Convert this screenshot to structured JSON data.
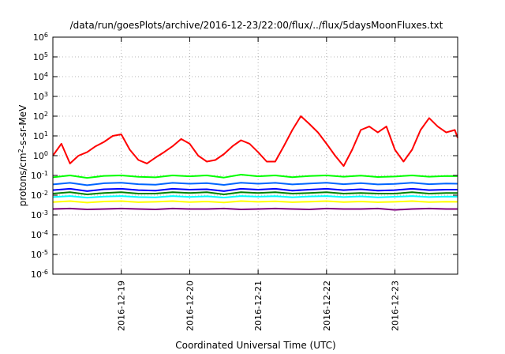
{
  "chart_data": {
    "type": "line",
    "title": "/data/run/goesPlots/archive/2016-12-23/22:00/flux/../flux/5daysMoonFluxes.txt",
    "xlabel": "Coordinated Universal Time (UTC)",
    "ylabel": {
      "pre": "protons/cm",
      "sup": "2",
      "post": "-s-sr-MeV"
    },
    "y_scale": "log",
    "ylim": [
      1e-06,
      1000000.0
    ],
    "y_ticks": [
      {
        "value": 1e-06,
        "base": "10",
        "exp": "-6"
      },
      {
        "value": 1e-05,
        "base": "10",
        "exp": "-5"
      },
      {
        "value": 0.0001,
        "base": "10",
        "exp": "-4"
      },
      {
        "value": 0.001,
        "base": "10",
        "exp": "-3"
      },
      {
        "value": 0.01,
        "base": "10",
        "exp": "-2"
      },
      {
        "value": 0.1,
        "base": "10",
        "exp": "-1"
      },
      {
        "value": 1,
        "base": "10",
        "exp": "0"
      },
      {
        "value": 10,
        "base": "10",
        "exp": "1"
      },
      {
        "value": 100,
        "base": "10",
        "exp": "2"
      },
      {
        "value": 1000,
        "base": "10",
        "exp": "3"
      },
      {
        "value": 10000,
        "base": "10",
        "exp": "4"
      },
      {
        "value": 100000,
        "base": "10",
        "exp": "5"
      },
      {
        "value": 1000000,
        "base": "10",
        "exp": "6"
      }
    ],
    "xlim": [
      "2016-12-18 00:00",
      "2016-12-23 22:00"
    ],
    "x_ticks": [
      {
        "value": "2016-12-19 00:00",
        "label": "2016-12-19"
      },
      {
        "value": "2016-12-20 00:00",
        "label": "2016-12-20"
      },
      {
        "value": "2016-12-21 00:00",
        "label": "2016-12-21"
      },
      {
        "value": "2016-12-22 00:00",
        "label": "2016-12-22"
      },
      {
        "value": "2016-12-23 00:00",
        "label": "2016-12-23"
      }
    ],
    "grid": true,
    "series": [
      {
        "color": "#800080",
        "x": [
          "2016-12-18 00:00",
          "2016-12-18 06:00",
          "2016-12-18 12:00",
          "2016-12-18 18:00",
          "2016-12-19 00:00",
          "2016-12-19 06:00",
          "2016-12-19 12:00",
          "2016-12-19 18:00",
          "2016-12-20 00:00",
          "2016-12-20 06:00",
          "2016-12-20 12:00",
          "2016-12-20 18:00",
          "2016-12-21 00:00",
          "2016-12-21 06:00",
          "2016-12-21 12:00",
          "2016-12-21 18:00",
          "2016-12-22 00:00",
          "2016-12-22 06:00",
          "2016-12-22 12:00",
          "2016-12-22 18:00",
          "2016-12-23 00:00",
          "2016-12-23 06:00",
          "2016-12-23 12:00",
          "2016-12-23 18:00",
          "2016-12-23 22:00"
        ],
        "values": [
          0.002,
          0.0021,
          0.0019,
          0.002,
          0.0021,
          0.002,
          0.0019,
          0.0021,
          0.002,
          0.002,
          0.0021,
          0.0019,
          0.002,
          0.0021,
          0.002,
          0.0019,
          0.0021,
          0.002,
          0.002,
          0.0021,
          0.0018,
          0.002,
          0.0021,
          0.002,
          0.002
        ]
      },
      {
        "color": "#ffff00",
        "x": [
          "2016-12-18 00:00",
          "2016-12-18 06:00",
          "2016-12-18 12:00",
          "2016-12-18 18:00",
          "2016-12-19 00:00",
          "2016-12-19 06:00",
          "2016-12-19 12:00",
          "2016-12-19 18:00",
          "2016-12-20 00:00",
          "2016-12-20 06:00",
          "2016-12-20 12:00",
          "2016-12-20 18:00",
          "2016-12-21 00:00",
          "2016-12-21 06:00",
          "2016-12-21 12:00",
          "2016-12-21 18:00",
          "2016-12-22 00:00",
          "2016-12-22 06:00",
          "2016-12-22 12:00",
          "2016-12-22 18:00",
          "2016-12-23 00:00",
          "2016-12-23 06:00",
          "2016-12-23 12:00",
          "2016-12-23 18:00",
          "2016-12-23 22:00"
        ],
        "values": [
          0.0045,
          0.005,
          0.0042,
          0.0048,
          0.005,
          0.0044,
          0.0046,
          0.005,
          0.0045,
          0.0048,
          0.0043,
          0.005,
          0.0046,
          0.0049,
          0.0044,
          0.0047,
          0.005,
          0.0045,
          0.0048,
          0.0044,
          0.0046,
          0.005,
          0.0045,
          0.0047,
          0.0046
        ]
      },
      {
        "color": "#00ffff",
        "x": [
          "2016-12-18 00:00",
          "2016-12-18 06:00",
          "2016-12-18 12:00",
          "2016-12-18 18:00",
          "2016-12-19 00:00",
          "2016-12-19 06:00",
          "2016-12-19 12:00",
          "2016-12-19 18:00",
          "2016-12-20 00:00",
          "2016-12-20 06:00",
          "2016-12-20 12:00",
          "2016-12-20 18:00",
          "2016-12-21 00:00",
          "2016-12-21 06:00",
          "2016-12-21 12:00",
          "2016-12-21 18:00",
          "2016-12-22 00:00",
          "2016-12-22 06:00",
          "2016-12-22 12:00",
          "2016-12-22 18:00",
          "2016-12-23 00:00",
          "2016-12-23 06:00",
          "2016-12-23 12:00",
          "2016-12-23 18:00",
          "2016-12-23 22:00"
        ],
        "values": [
          0.008,
          0.009,
          0.0075,
          0.0085,
          0.009,
          0.008,
          0.0078,
          0.009,
          0.0082,
          0.0088,
          0.0076,
          0.009,
          0.0084,
          0.0089,
          0.0079,
          0.0086,
          0.009,
          0.008,
          0.0087,
          0.0078,
          0.0083,
          0.009,
          0.008,
          0.0085,
          0.0084
        ]
      },
      {
        "color": "#008000",
        "x": [
          "2016-12-18 00:00",
          "2016-12-18 06:00",
          "2016-12-18 12:00",
          "2016-12-18 18:00",
          "2016-12-19 00:00",
          "2016-12-19 06:00",
          "2016-12-19 12:00",
          "2016-12-19 18:00",
          "2016-12-20 00:00",
          "2016-12-20 06:00",
          "2016-12-20 12:00",
          "2016-12-20 18:00",
          "2016-12-21 00:00",
          "2016-12-21 06:00",
          "2016-12-21 12:00",
          "2016-12-21 18:00",
          "2016-12-22 00:00",
          "2016-12-22 06:00",
          "2016-12-22 12:00",
          "2016-12-22 18:00",
          "2016-12-23 00:00",
          "2016-12-23 06:00",
          "2016-12-23 12:00",
          "2016-12-23 18:00",
          "2016-12-23 22:00"
        ],
        "values": [
          0.012,
          0.014,
          0.011,
          0.013,
          0.014,
          0.012,
          0.012,
          0.014,
          0.013,
          0.014,
          0.011,
          0.014,
          0.013,
          0.014,
          0.012,
          0.013,
          0.014,
          0.012,
          0.013,
          0.012,
          0.012,
          0.014,
          0.012,
          0.013,
          0.013
        ]
      },
      {
        "color": "#0000ff",
        "x": [
          "2016-12-18 00:00",
          "2016-12-18 06:00",
          "2016-12-18 12:00",
          "2016-12-18 18:00",
          "2016-12-19 00:00",
          "2016-12-19 06:00",
          "2016-12-19 12:00",
          "2016-12-19 18:00",
          "2016-12-20 00:00",
          "2016-12-20 06:00",
          "2016-12-20 12:00",
          "2016-12-20 18:00",
          "2016-12-21 00:00",
          "2016-12-21 06:00",
          "2016-12-21 12:00",
          "2016-12-21 18:00",
          "2016-12-22 00:00",
          "2016-12-22 06:00",
          "2016-12-22 12:00",
          "2016-12-22 18:00",
          "2016-12-23 00:00",
          "2016-12-23 06:00",
          "2016-12-23 12:00",
          "2016-12-23 18:00",
          "2016-12-23 22:00"
        ],
        "values": [
          0.018,
          0.021,
          0.016,
          0.02,
          0.021,
          0.018,
          0.017,
          0.021,
          0.019,
          0.02,
          0.016,
          0.021,
          0.019,
          0.021,
          0.017,
          0.019,
          0.021,
          0.018,
          0.02,
          0.017,
          0.018,
          0.021,
          0.018,
          0.019,
          0.019
        ]
      },
      {
        "color": "#0064ff",
        "x": [
          "2016-12-18 00:00",
          "2016-12-18 06:00",
          "2016-12-18 12:00",
          "2016-12-18 18:00",
          "2016-12-19 00:00",
          "2016-12-19 06:00",
          "2016-12-19 12:00",
          "2016-12-19 18:00",
          "2016-12-20 00:00",
          "2016-12-20 06:00",
          "2016-12-20 12:00",
          "2016-12-20 18:00",
          "2016-12-21 00:00",
          "2016-12-21 06:00",
          "2016-12-21 12:00",
          "2016-12-21 18:00",
          "2016-12-22 00:00",
          "2016-12-22 06:00",
          "2016-12-22 12:00",
          "2016-12-22 18:00",
          "2016-12-23 00:00",
          "2016-12-23 06:00",
          "2016-12-23 12:00",
          "2016-12-23 18:00",
          "2016-12-23 22:00"
        ],
        "values": [
          0.035,
          0.042,
          0.032,
          0.04,
          0.043,
          0.036,
          0.034,
          0.042,
          0.038,
          0.041,
          0.033,
          0.043,
          0.038,
          0.042,
          0.035,
          0.039,
          0.043,
          0.036,
          0.041,
          0.035,
          0.037,
          0.043,
          0.036,
          0.039,
          0.038
        ]
      },
      {
        "color": "#00ff00",
        "x": [
          "2016-12-18 00:00",
          "2016-12-18 06:00",
          "2016-12-18 12:00",
          "2016-12-18 18:00",
          "2016-12-19 00:00",
          "2016-12-19 06:00",
          "2016-12-19 12:00",
          "2016-12-19 18:00",
          "2016-12-20 00:00",
          "2016-12-20 06:00",
          "2016-12-20 12:00",
          "2016-12-20 18:00",
          "2016-12-21 00:00",
          "2016-12-21 06:00",
          "2016-12-21 12:00",
          "2016-12-21 18:00",
          "2016-12-22 00:00",
          "2016-12-22 06:00",
          "2016-12-22 12:00",
          "2016-12-22 18:00",
          "2016-12-23 00:00",
          "2016-12-23 06:00",
          "2016-12-23 12:00",
          "2016-12-23 18:00",
          "2016-12-23 22:00"
        ],
        "values": [
          0.08,
          0.1,
          0.075,
          0.095,
          0.1,
          0.085,
          0.08,
          0.1,
          0.09,
          0.1,
          0.078,
          0.11,
          0.09,
          0.1,
          0.082,
          0.094,
          0.1,
          0.086,
          0.098,
          0.083,
          0.088,
          0.1,
          0.086,
          0.094,
          0.092
        ]
      },
      {
        "color": "#ff0000",
        "x": [
          "2016-12-18 00:00",
          "2016-12-18 03:00",
          "2016-12-18 06:00",
          "2016-12-18 09:00",
          "2016-12-18 12:00",
          "2016-12-18 15:00",
          "2016-12-18 18:00",
          "2016-12-18 21:00",
          "2016-12-19 00:00",
          "2016-12-19 03:00",
          "2016-12-19 06:00",
          "2016-12-19 09:00",
          "2016-12-19 12:00",
          "2016-12-19 15:00",
          "2016-12-19 18:00",
          "2016-12-19 21:00",
          "2016-12-20 00:00",
          "2016-12-20 03:00",
          "2016-12-20 06:00",
          "2016-12-20 09:00",
          "2016-12-20 12:00",
          "2016-12-20 15:00",
          "2016-12-20 18:00",
          "2016-12-20 21:00",
          "2016-12-21 00:00",
          "2016-12-21 03:00",
          "2016-12-21 06:00",
          "2016-12-21 09:00",
          "2016-12-21 12:00",
          "2016-12-21 15:00",
          "2016-12-21 18:00",
          "2016-12-21 21:00",
          "2016-12-22 00:00",
          "2016-12-22 03:00",
          "2016-12-22 06:00",
          "2016-12-22 09:00",
          "2016-12-22 12:00",
          "2016-12-22 15:00",
          "2016-12-22 18:00",
          "2016-12-22 21:00",
          "2016-12-23 00:00",
          "2016-12-23 03:00",
          "2016-12-23 06:00",
          "2016-12-23 09:00",
          "2016-12-23 12:00",
          "2016-12-23 15:00",
          "2016-12-23 18:00",
          "2016-12-23 21:00",
          "2016-12-23 22:00"
        ],
        "values": [
          1.0,
          4.0,
          0.4,
          1.0,
          1.5,
          3.0,
          5.0,
          10.0,
          12.0,
          2.0,
          0.6,
          0.4,
          0.8,
          1.5,
          3.0,
          7.0,
          4.0,
          1.0,
          0.5,
          0.6,
          1.2,
          3.0,
          6.0,
          4.0,
          1.5,
          0.5,
          0.5,
          3.0,
          20.0,
          100.0,
          40.0,
          15.0,
          4.0,
          1.0,
          0.3,
          2.0,
          20.0,
          30.0,
          15.0,
          30.0,
          2.0,
          0.5,
          2.0,
          20.0,
          80.0,
          30.0,
          15.0,
          20.0,
          8.0
        ]
      }
    ]
  }
}
